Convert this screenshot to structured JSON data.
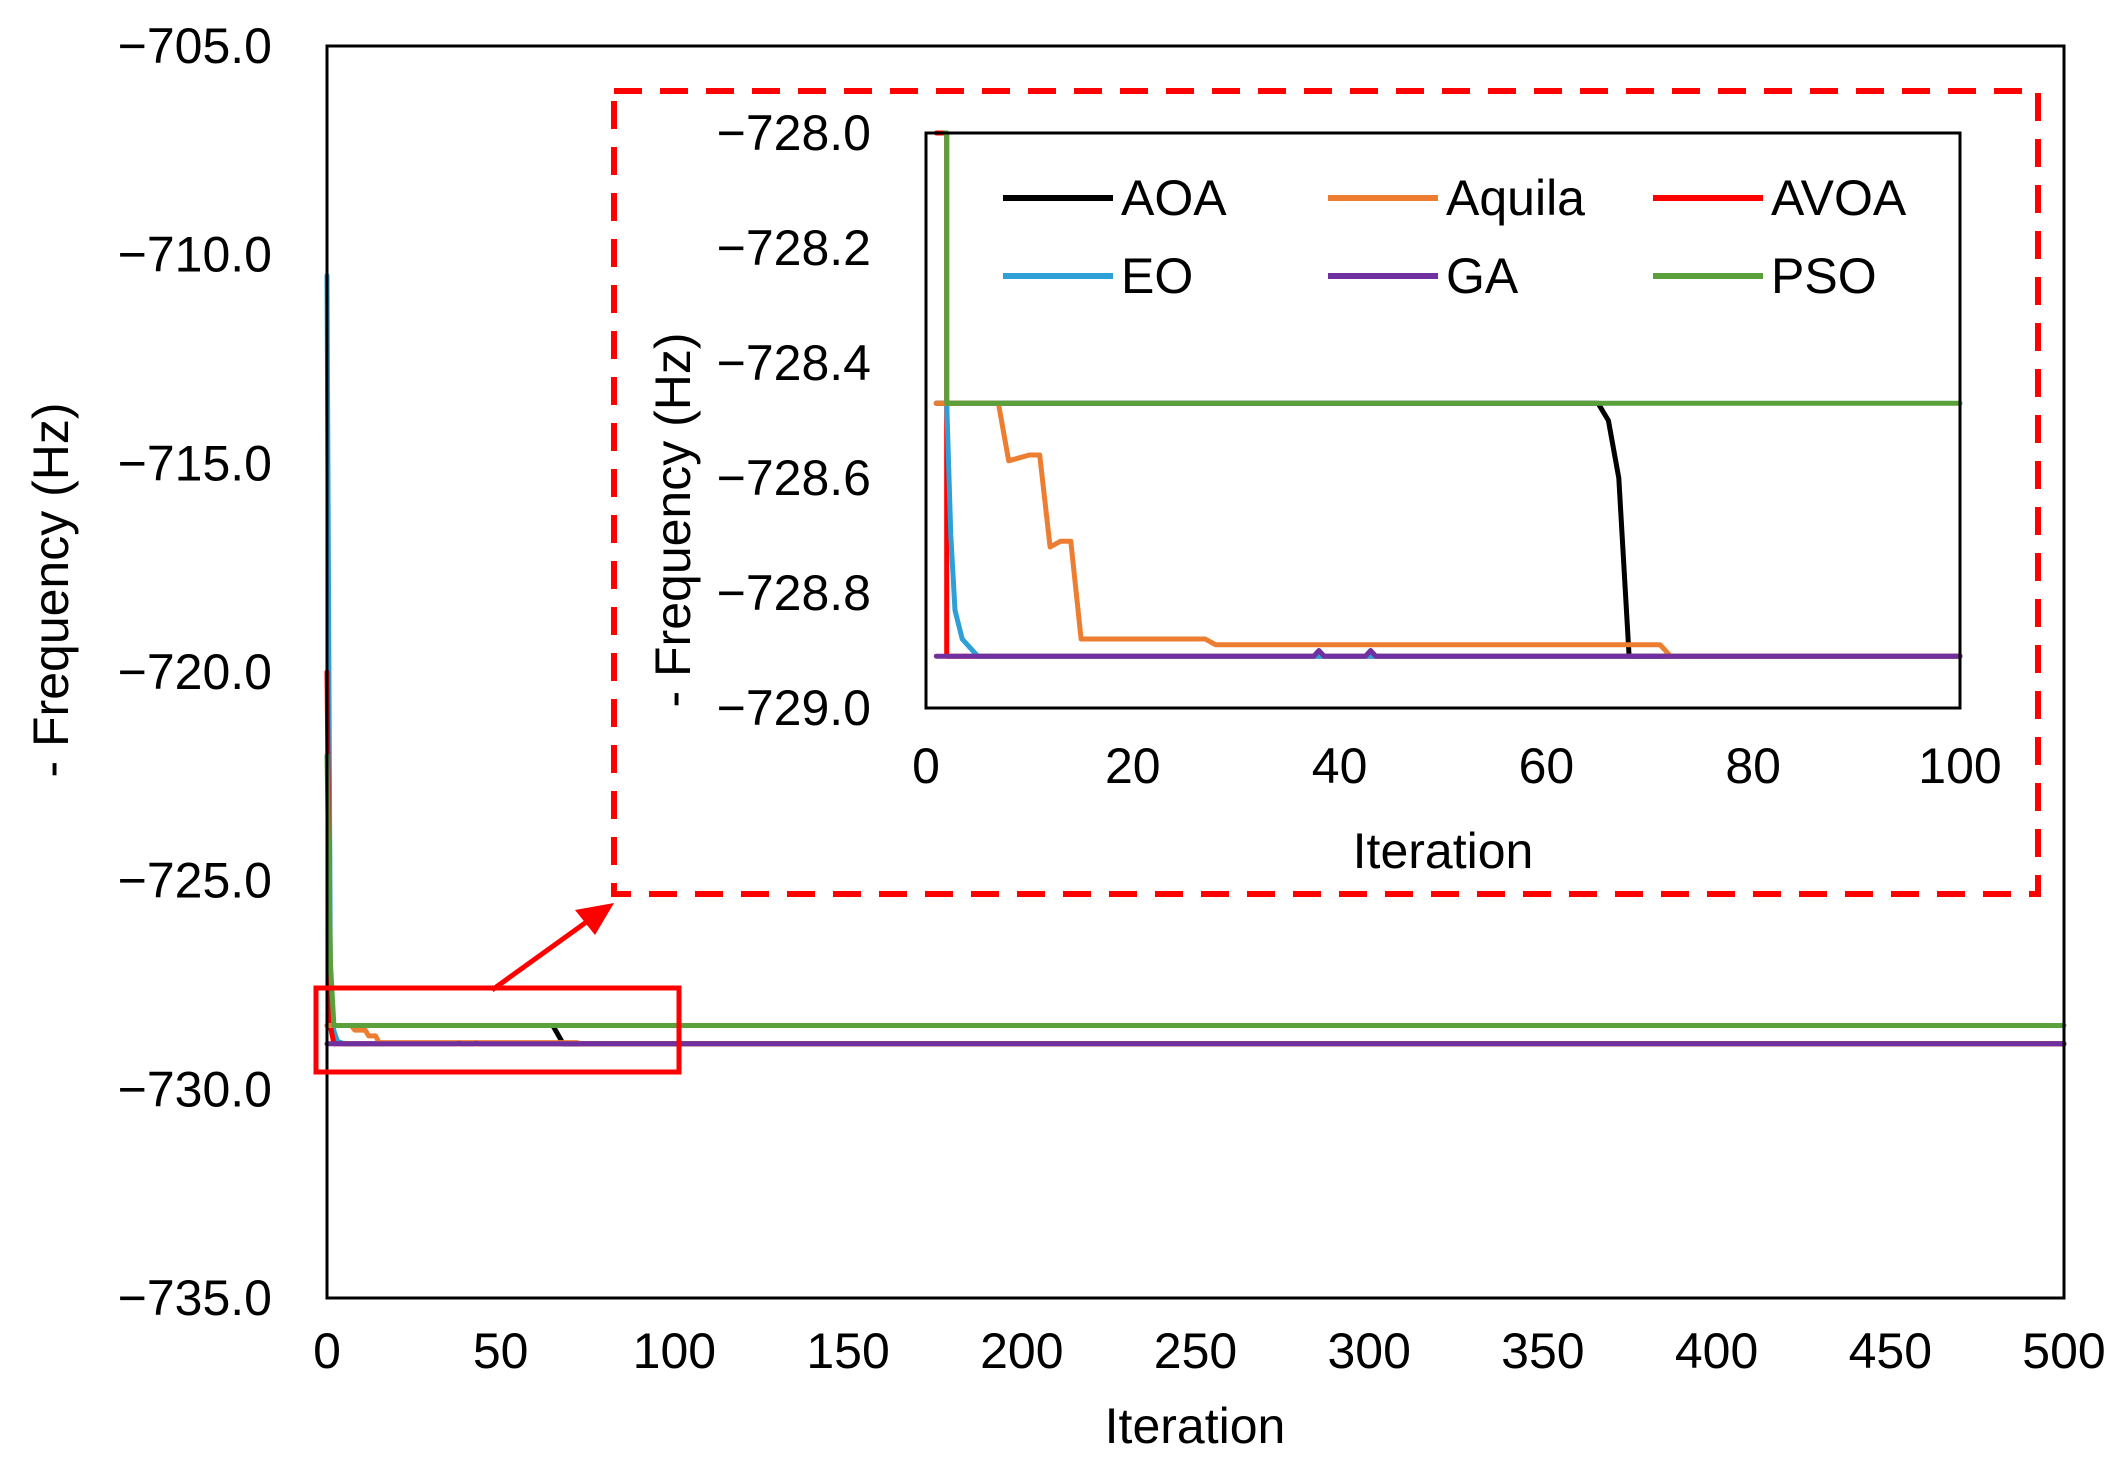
{
  "chart_data": [
    {
      "id": "main",
      "type": "line",
      "title": "",
      "xlabel": "Iteration",
      "ylabel": "- Frequency (Hz)",
      "xlim": [
        0,
        500
      ],
      "ylim": [
        -735,
        -705
      ],
      "xticks": [
        0,
        50,
        100,
        150,
        200,
        250,
        300,
        350,
        400,
        450,
        500
      ],
      "yticks": [
        -705,
        -710,
        -715,
        -720,
        -725,
        -730,
        -735
      ],
      "xtick_labels": [
        "0",
        "50",
        "100",
        "150",
        "200",
        "250",
        "300",
        "350",
        "400",
        "450",
        "500"
      ],
      "ytick_labels": [
        "−705.0",
        "−710.0",
        "−715.0",
        "−720.0",
        "−725.0",
        "−730.0",
        "−735.0"
      ],
      "grid": false,
      "series": [
        {
          "name": "AOA",
          "color": "#000000",
          "x": [
            0,
            1,
            65,
            68,
            500
          ],
          "y": [
            -728.47,
            -728.47,
            -728.47,
            -728.91,
            -728.91
          ]
        },
        {
          "name": "Aquila",
          "color": "#ed7d31",
          "x": [
            0,
            1,
            7,
            8,
            11,
            12,
            14,
            15,
            28,
            72,
            73,
            500
          ],
          "y": [
            -728.47,
            -728.47,
            -728.47,
            -728.58,
            -728.58,
            -728.72,
            -728.72,
            -728.88,
            -728.88,
            -728.88,
            -728.91,
            -728.91
          ]
        },
        {
          "name": "AVOA",
          "color": "#ff0000",
          "x": [
            0,
            1,
            2,
            500
          ],
          "y": [
            -720.0,
            -728.5,
            -728.91,
            -728.91
          ]
        },
        {
          "name": "EO",
          "color": "#2e9fd7",
          "x": [
            0,
            1,
            2,
            3,
            5,
            500
          ],
          "y": [
            -710.5,
            -728.0,
            -728.6,
            -728.85,
            -728.91,
            -728.91
          ]
        },
        {
          "name": "GA",
          "color": "#7030a0",
          "x": [
            0,
            37,
            38,
            39,
            42,
            43,
            44,
            500
          ],
          "y": [
            -728.91,
            -728.91,
            -728.9,
            -728.91,
            -728.91,
            -728.9,
            -728.91,
            -728.91
          ]
        },
        {
          "name": "PSO",
          "color": "#5aa13c",
          "x": [
            0,
            1,
            2,
            500
          ],
          "y": [
            -722.0,
            -727.0,
            -728.47,
            -728.47
          ]
        }
      ],
      "annotation": {
        "zoom_box_x": [
          0,
          100
        ],
        "zoom_box_y": [
          -728.0,
          -729.7
        ]
      }
    },
    {
      "id": "inset",
      "type": "line",
      "title": "",
      "xlabel": "Iteration",
      "ylabel": "- Frequency (Hz)",
      "xlim": [
        0,
        100
      ],
      "ylim": [
        -729.0,
        -728.0
      ],
      "xticks": [
        0,
        20,
        40,
        60,
        80,
        100
      ],
      "yticks": [
        -728.0,
        -728.2,
        -728.4,
        -728.6,
        -728.8,
        -729.0
      ],
      "xtick_labels": [
        "0",
        "20",
        "40",
        "60",
        "80",
        "100"
      ],
      "ytick_labels": [
        "−728.0",
        "−728.2",
        "−728.4",
        "−728.6",
        "−728.8",
        "−729.0"
      ],
      "grid": false,
      "legend_position": "top",
      "series": [
        {
          "name": "AOA",
          "color": "#000000",
          "x": [
            1,
            64,
            65,
            66,
            67,
            68,
            100
          ],
          "y": [
            -728.47,
            -728.47,
            -728.47,
            -728.5,
            -728.6,
            -728.91,
            -728.91
          ]
        },
        {
          "name": "Aquila",
          "color": "#ed7d31",
          "x": [
            1,
            7,
            8,
            10,
            11,
            12,
            13,
            14,
            15,
            27,
            28,
            71,
            72,
            100
          ],
          "y": [
            -728.47,
            -728.47,
            -728.57,
            -728.56,
            -728.56,
            -728.72,
            -728.71,
            -728.71,
            -728.88,
            -728.88,
            -728.89,
            -728.89,
            -728.91,
            -728.91
          ]
        },
        {
          "name": "AVOA",
          "color": "#ff0000",
          "x": [
            1,
            2,
            2,
            100
          ],
          "y": [
            -728.0,
            -728.0,
            -728.91,
            -728.91
          ]
        },
        {
          "name": "EO",
          "color": "#2e9fd7",
          "x": [
            1,
            2,
            2.4,
            2.8,
            3.5,
            5,
            100
          ],
          "y": [
            -728.47,
            -728.47,
            -728.7,
            -728.83,
            -728.88,
            -728.91,
            -728.91
          ]
        },
        {
          "name": "GA",
          "color": "#7030a0",
          "x": [
            1,
            37.5,
            38,
            38.5,
            42.5,
            43,
            43.5,
            100
          ],
          "y": [
            -728.91,
            -728.91,
            -728.9,
            -728.91,
            -728.91,
            -728.9,
            -728.91,
            -728.91
          ]
        },
        {
          "name": "PSO",
          "color": "#5aa13c",
          "x": [
            1.8,
            2,
            2,
            100
          ],
          "y": [
            -728.0,
            -728.0,
            -728.47,
            -728.47
          ]
        }
      ]
    }
  ]
}
